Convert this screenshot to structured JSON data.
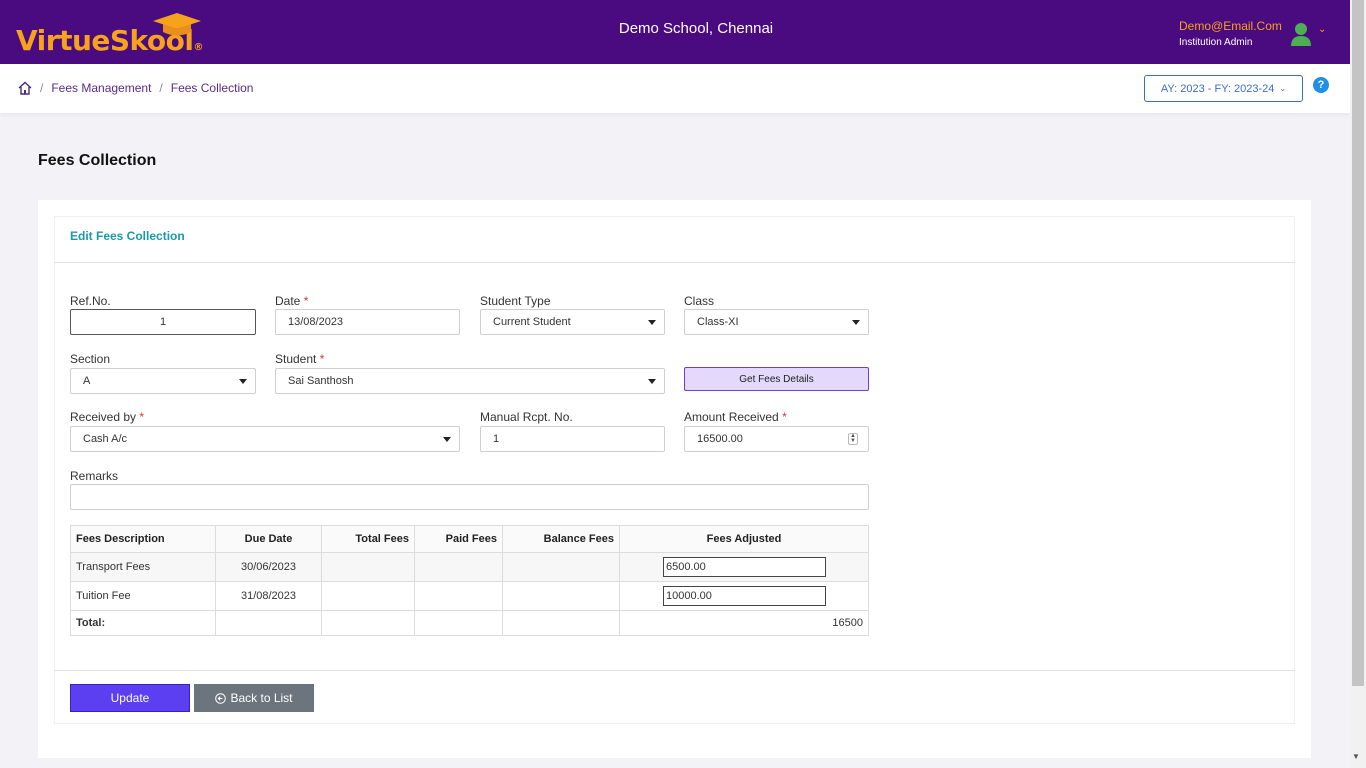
{
  "header": {
    "logo_main": "VirtueSkool",
    "logo_mark": "®",
    "school": "Demo School, Chennai",
    "user_email": "Demo@Email.Com",
    "user_role": "Institution Admin"
  },
  "breadcrumb": {
    "items": [
      "Fees Management",
      "Fees Collection"
    ],
    "separator": "/"
  },
  "academic_year": "AY: 2023 - FY: 2023-24",
  "help_label": "?",
  "page": {
    "title": "Fees Collection",
    "card_title": "Edit Fees Collection"
  },
  "form": {
    "ref_no": {
      "label": "Ref.No.",
      "value": "1"
    },
    "date": {
      "label": "Date",
      "value": "13/08/2023",
      "required": "*"
    },
    "student_type": {
      "label": "Student Type",
      "value": "Current Student"
    },
    "class": {
      "label": "Class",
      "value": "Class-XI"
    },
    "section": {
      "label": "Section",
      "value": "A"
    },
    "student": {
      "label": "Student",
      "value": "Sai Santhosh",
      "required": "*"
    },
    "get_fees_button": "Get Fees Details",
    "received_by": {
      "label": "Received by",
      "value": "Cash A/c",
      "required": "*"
    },
    "manual_rcpt": {
      "label": "Manual Rcpt. No.",
      "value": "1"
    },
    "amount_received": {
      "label": "Amount Received",
      "value": "16500.00",
      "required": "*"
    },
    "remarks": {
      "label": "Remarks",
      "value": ""
    }
  },
  "table": {
    "headers": [
      "Fees Description",
      "Due Date",
      "Total Fees",
      "Paid Fees",
      "Balance Fees",
      "Fees Adjusted"
    ],
    "rows": [
      {
        "description": "Transport Fees",
        "due_date": "30/06/2023",
        "total": "",
        "paid": "",
        "balance": "",
        "adjusted": "6500.00"
      },
      {
        "description": "Tuition Fee",
        "due_date": "31/08/2023",
        "total": "",
        "paid": "",
        "balance": "",
        "adjusted": "10000.00"
      }
    ],
    "total_label": "Total:",
    "total_value": "16500"
  },
  "actions": {
    "update": "Update",
    "back": "Back to List"
  },
  "colors": {
    "header_bg": "#4a0a80",
    "brand_orange": "#f7a21b",
    "accent_teal": "#1a9aa8",
    "primary_button": "#5b3ff0",
    "secondary_button": "#6c757d"
  }
}
